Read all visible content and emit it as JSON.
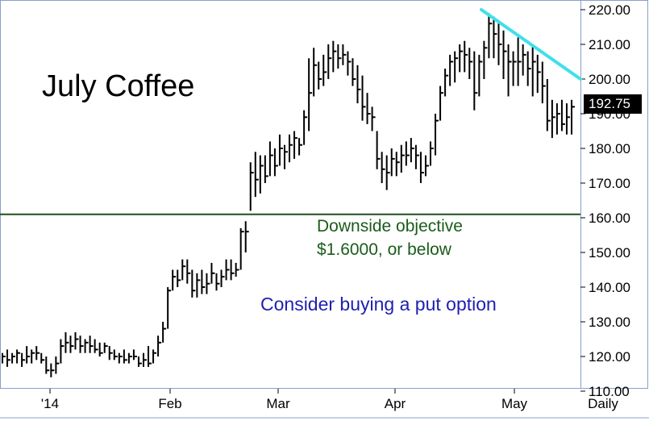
{
  "chart_data": {
    "type": "ohlc",
    "title": "July Coffee",
    "ylim": [
      110,
      222
    ],
    "y_ticks": [
      "220.00",
      "210.00",
      "200.00",
      "190.00",
      "180.00",
      "170.00",
      "160.00",
      "150.00",
      "140.00",
      "130.00",
      "120.00",
      "110.00"
    ],
    "x_ticks": [
      "'14",
      "Feb",
      "Mar",
      "Apr",
      "May",
      "Daily"
    ],
    "last_price": "192.75",
    "support_level": 161,
    "trendline": {
      "from": 220,
      "to": 200
    },
    "annotations": {
      "downside_line1": "Downside objective",
      "downside_line2": "$1.6000, or below",
      "put_option": "Consider buying a put option"
    },
    "series": [
      {
        "bars": [
          [
            121,
            118,
            120
          ],
          [
            122,
            117,
            119
          ],
          [
            121,
            118,
            120
          ],
          [
            122,
            118,
            121
          ],
          [
            121,
            117,
            119
          ],
          [
            123,
            118,
            120
          ],
          [
            122,
            118,
            121
          ],
          [
            123,
            119,
            121
          ],
          [
            121,
            118,
            119
          ],
          [
            120,
            115,
            116
          ],
          [
            118,
            114,
            116
          ],
          [
            120,
            115,
            118
          ],
          [
            125,
            118,
            123
          ],
          [
            127,
            121,
            124
          ],
          [
            126,
            121,
            123
          ],
          [
            127,
            122,
            125
          ],
          [
            126,
            121,
            123
          ],
          [
            125,
            121,
            124
          ],
          [
            126,
            121,
            123
          ],
          [
            125,
            121,
            122
          ],
          [
            124,
            120,
            121
          ],
          [
            124,
            121,
            123
          ],
          [
            123,
            119,
            121
          ],
          [
            122,
            119,
            120
          ],
          [
            121,
            118,
            120
          ],
          [
            122,
            118,
            119
          ],
          [
            121,
            118,
            120
          ],
          [
            122,
            119,
            120
          ],
          [
            120,
            117,
            118
          ],
          [
            121,
            117,
            119
          ],
          [
            123,
            117,
            118
          ],
          [
            122,
            118,
            121
          ],
          [
            126,
            120,
            124
          ],
          [
            130,
            124,
            128
          ],
          [
            140,
            128,
            139
          ],
          [
            145,
            139,
            143
          ],
          [
            145,
            140,
            142
          ],
          [
            148,
            142,
            146
          ],
          [
            148,
            141,
            144
          ],
          [
            145,
            137,
            139
          ],
          [
            144,
            137,
            142
          ],
          [
            145,
            138,
            140
          ],
          [
            144,
            138,
            141
          ],
          [
            147,
            141,
            144
          ],
          [
            144,
            139,
            141
          ],
          [
            145,
            140,
            143
          ],
          [
            148,
            142,
            145
          ],
          [
            148,
            142,
            144
          ],
          [
            147,
            143,
            145
          ],
          [
            157,
            145,
            156
          ],
          [
            159,
            150,
            156
          ],
          [
            176,
            162,
            173
          ],
          [
            179,
            166,
            171
          ],
          [
            178,
            167,
            175
          ],
          [
            178,
            170,
            172
          ],
          [
            182,
            172,
            178
          ],
          [
            180,
            172,
            175
          ],
          [
            184,
            175,
            180
          ],
          [
            181,
            174,
            179
          ],
          [
            184,
            176,
            181
          ],
          [
            185,
            177,
            183
          ],
          [
            183,
            178,
            181
          ],
          [
            191,
            181,
            189
          ],
          [
            206,
            185,
            196
          ],
          [
            209,
            195,
            204
          ],
          [
            205,
            197,
            200
          ],
          [
            207,
            198,
            202
          ],
          [
            210,
            200,
            206
          ],
          [
            211,
            202,
            208
          ],
          [
            210,
            203,
            206
          ],
          [
            210,
            204,
            207
          ],
          [
            208,
            201,
            205
          ],
          [
            206,
            198,
            200
          ],
          [
            204,
            193,
            197
          ],
          [
            201,
            188,
            192
          ],
          [
            196,
            187,
            190
          ],
          [
            192,
            185,
            189
          ],
          [
            185,
            174,
            177
          ],
          [
            179,
            170,
            174
          ],
          [
            178,
            168,
            173
          ],
          [
            180,
            172,
            177
          ],
          [
            179,
            172,
            176
          ],
          [
            181,
            173,
            178
          ],
          [
            182,
            175,
            178
          ],
          [
            183,
            176,
            180
          ],
          [
            181,
            174,
            178
          ],
          [
            179,
            170,
            173
          ],
          [
            178,
            172,
            175
          ],
          [
            182,
            175,
            180
          ],
          [
            190,
            178,
            188
          ],
          [
            198,
            188,
            196
          ],
          [
            203,
            195,
            201
          ],
          [
            207,
            198,
            205
          ],
          [
            208,
            199,
            206
          ],
          [
            210,
            202,
            208
          ],
          [
            211,
            202,
            207
          ],
          [
            209,
            200,
            205
          ],
          [
            208,
            191,
            196
          ],
          [
            207,
            195,
            205
          ],
          [
            211,
            200,
            209
          ],
          [
            219,
            206,
            216
          ],
          [
            218,
            206,
            213
          ],
          [
            216,
            204,
            210
          ],
          [
            214,
            200,
            208
          ],
          [
            210,
            195,
            205
          ],
          [
            208,
            198,
            205
          ],
          [
            212,
            198,
            205
          ],
          [
            210,
            201,
            207
          ],
          [
            208,
            198,
            203
          ],
          [
            210,
            195,
            205
          ],
          [
            207,
            196,
            202
          ],
          [
            205,
            193,
            198
          ],
          [
            200,
            185,
            188
          ],
          [
            194,
            183,
            189
          ],
          [
            193,
            184,
            190
          ],
          [
            194,
            185,
            187
          ],
          [
            193,
            184,
            189
          ],
          [
            194,
            184,
            192
          ]
        ]
      }
    ]
  }
}
